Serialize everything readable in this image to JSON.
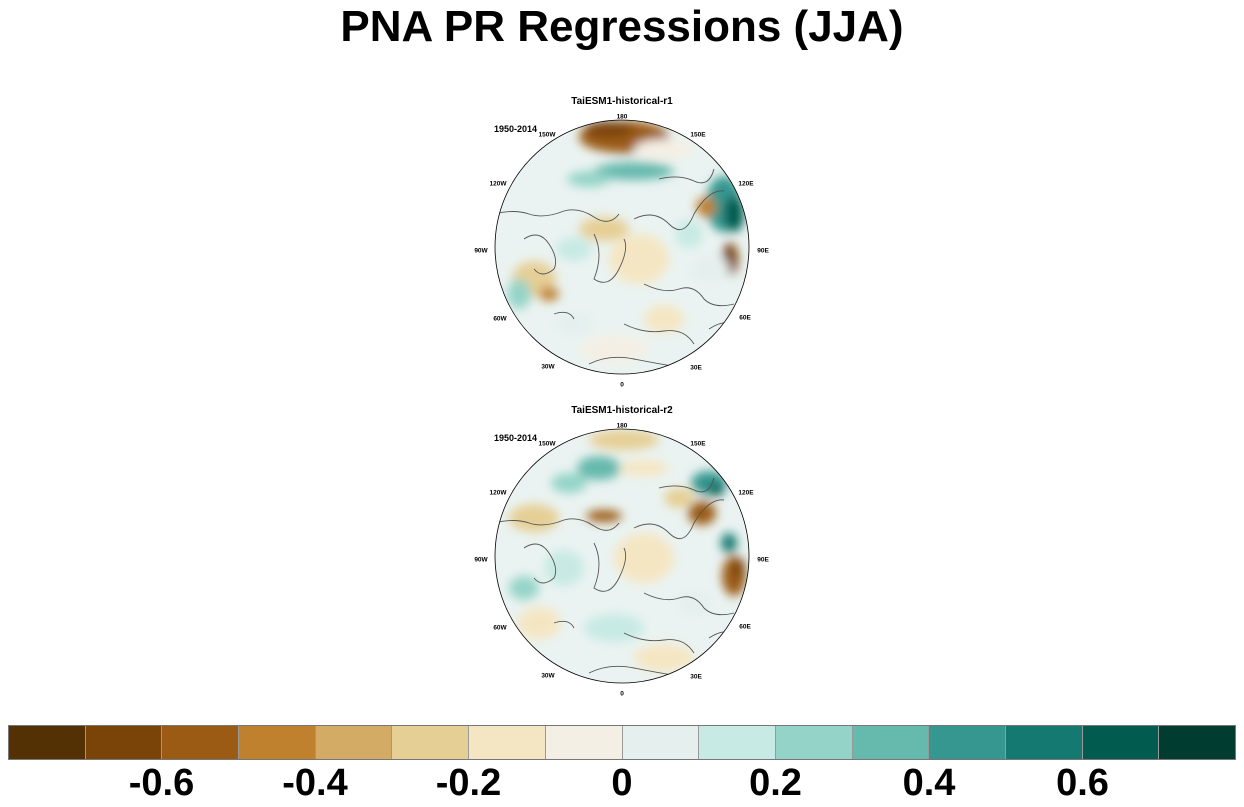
{
  "title": "PNA PR Regressions (JJA)",
  "panels": [
    {
      "model": "TaiESM1-historical-r1",
      "period": "1950-2014",
      "lon_labels": [
        "180",
        "150E",
        "120E",
        "90E",
        "60E",
        "30E",
        "0",
        "30W",
        "60W",
        "90W",
        "120W",
        "150W"
      ]
    },
    {
      "model": "TaiESM1-historical-r2",
      "period": "1950-2014",
      "lon_labels": [
        "180",
        "150E",
        "120E",
        "90E",
        "60E",
        "30E",
        "0",
        "30W",
        "60W",
        "90W",
        "120W",
        "150W"
      ]
    }
  ],
  "colorbar": {
    "colors": [
      "#543005",
      "#7a4307",
      "#9b5b14",
      "#bf812d",
      "#d3ab64",
      "#e6cf95",
      "#f5e6c3",
      "#f4efe4",
      "#e5f0ee",
      "#c7eae4",
      "#94d4c8",
      "#66b9ad",
      "#35978f",
      "#147a71",
      "#015c4f",
      "#003c30"
    ],
    "tick_labels": [
      "-0.6",
      "-0.4",
      "-0.2",
      "0",
      "0.2",
      "0.4",
      "0.6"
    ]
  }
}
